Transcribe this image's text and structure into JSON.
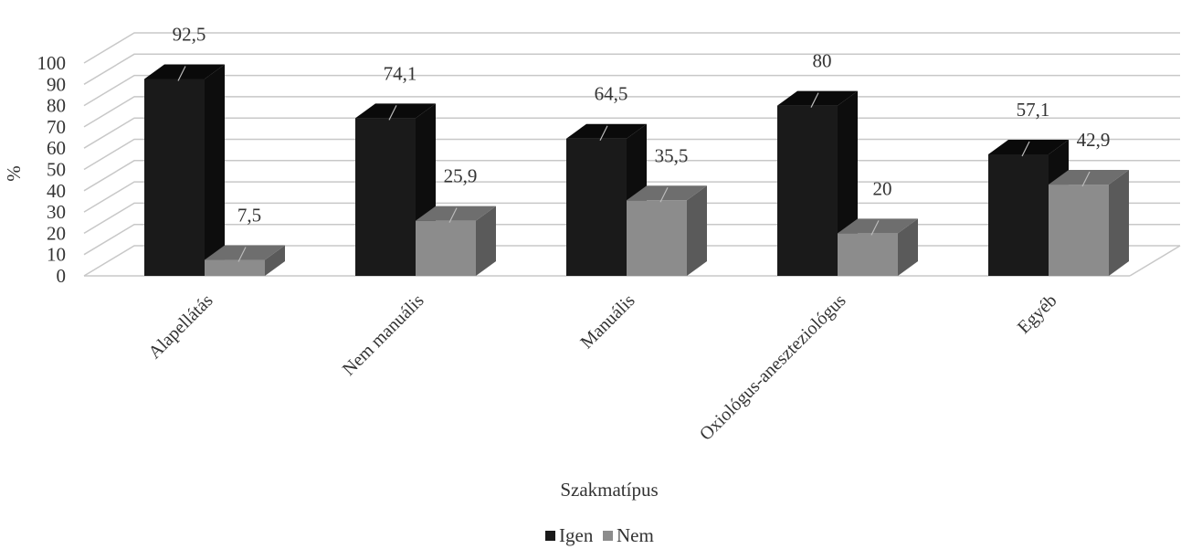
{
  "chart_data": {
    "type": "bar",
    "title": "",
    "xlabel": "Szakmatípus",
    "ylabel": "%",
    "ylim": [
      0,
      100
    ],
    "yticks": [
      0,
      10,
      20,
      30,
      40,
      50,
      60,
      70,
      80,
      90,
      100
    ],
    "categories": [
      "Alapellátás",
      "Nem manuális",
      "Manuális",
      "Oxiológus-aneszteziológus",
      "Egyéb"
    ],
    "series": [
      {
        "name": "Igen",
        "values": [
          92.5,
          74.1,
          64.5,
          80,
          57.1
        ],
        "labels": [
          "92,5",
          "74,1",
          "64,5",
          "80",
          "57,1"
        ],
        "color": "#1a1a1a"
      },
      {
        "name": "Nem",
        "values": [
          7.5,
          25.9,
          35.5,
          20,
          42.9
        ],
        "labels": [
          "7,5",
          "25,9",
          "35,5",
          "20",
          "42,9"
        ],
        "color": "#8c8c8c"
      }
    ],
    "grid": true,
    "legend": "bottom",
    "style": "3d-column"
  }
}
